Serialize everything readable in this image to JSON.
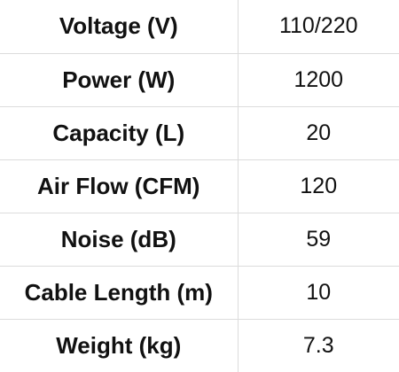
{
  "specs": [
    {
      "label": "Voltage (V)",
      "value": "110/220"
    },
    {
      "label": "Power (W)",
      "value": "1200"
    },
    {
      "label": "Capacity (L)",
      "value": "20"
    },
    {
      "label": "Air Flow (CFM)",
      "value": "120"
    },
    {
      "label": "Noise (dB)",
      "value": "59"
    },
    {
      "label": "Cable Length (m)",
      "value": "10"
    },
    {
      "label": "Weight (kg)",
      "value": "7.3"
    }
  ]
}
